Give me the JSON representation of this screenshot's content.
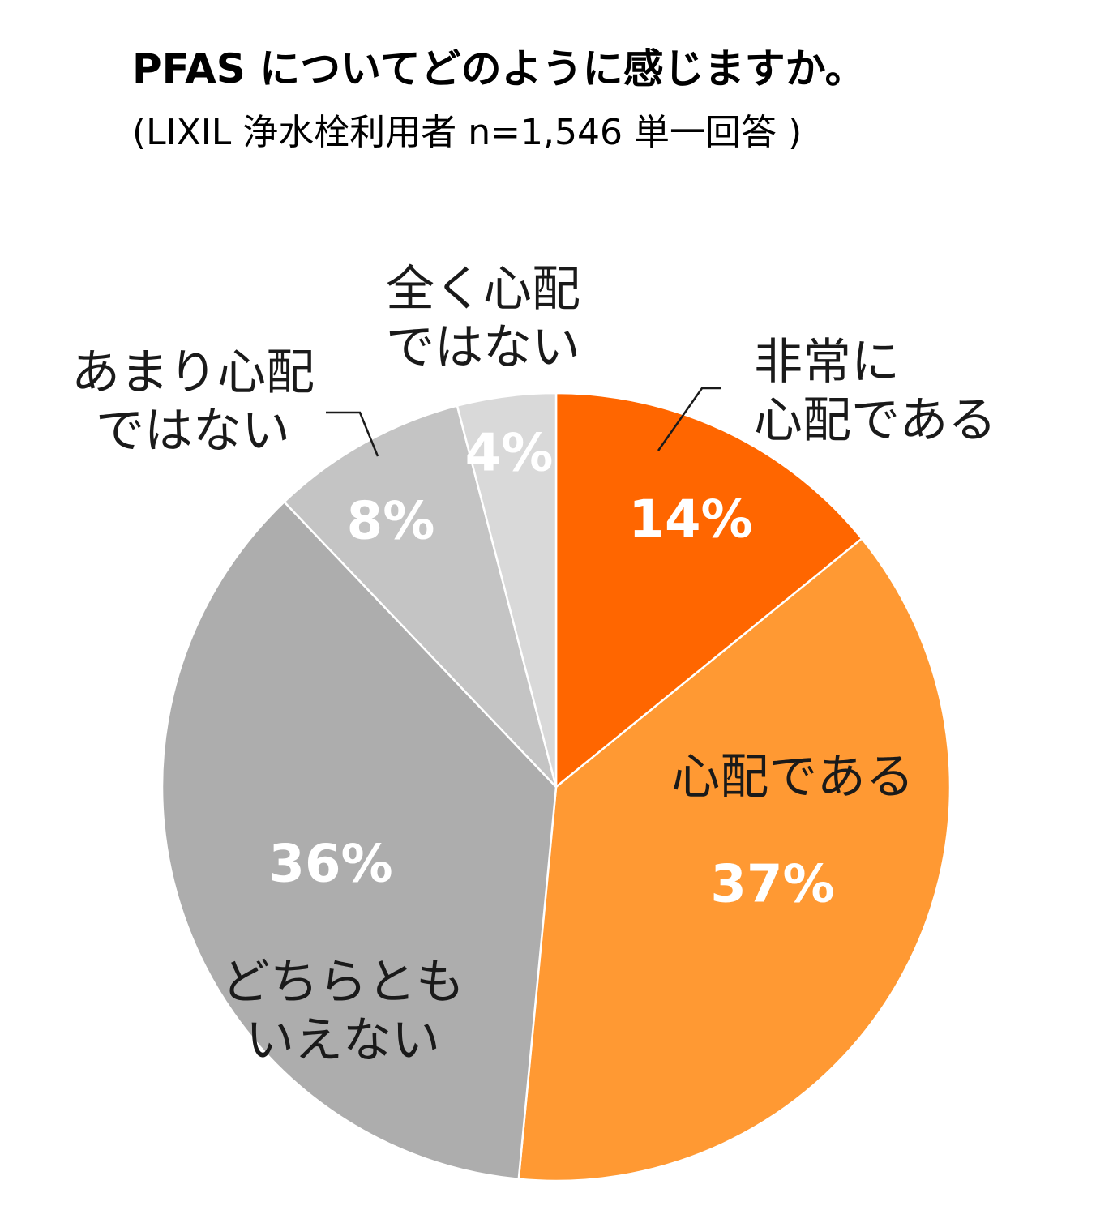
{
  "chart_data": {
    "type": "pie",
    "title": "PFAS についてどのように感じますか。",
    "subtitle": "(LIXIL 浄水栓利用者 n=1,546 単一回答 )",
    "slices": [
      {
        "label": "非常に心配である",
        "label_lines": [
          "非常に",
          "心配である"
        ],
        "value": 14,
        "value_label": "14%",
        "color": "#FF6600"
      },
      {
        "label": "心配である",
        "label_lines": [
          "心配である"
        ],
        "value": 37,
        "value_label": "37%",
        "color": "#FF9933"
      },
      {
        "label": "どちらともいえない",
        "label_lines": [
          "どちらとも",
          "いえない"
        ],
        "value": 36,
        "value_label": "36%",
        "color": "#ADADAD"
      },
      {
        "label": "あまり心配ではない",
        "label_lines": [
          "あまり心配",
          "ではない"
        ],
        "value": 8,
        "value_label": "8%",
        "color": "#C4C4C4"
      },
      {
        "label": "全く心配ではない",
        "label_lines": [
          "全く心配",
          "ではない"
        ],
        "value": 4,
        "value_label": "4%",
        "color": "#D9D9D9"
      }
    ],
    "start_angle": "12 o'clock",
    "direction": "clockwise",
    "legend": "none"
  }
}
